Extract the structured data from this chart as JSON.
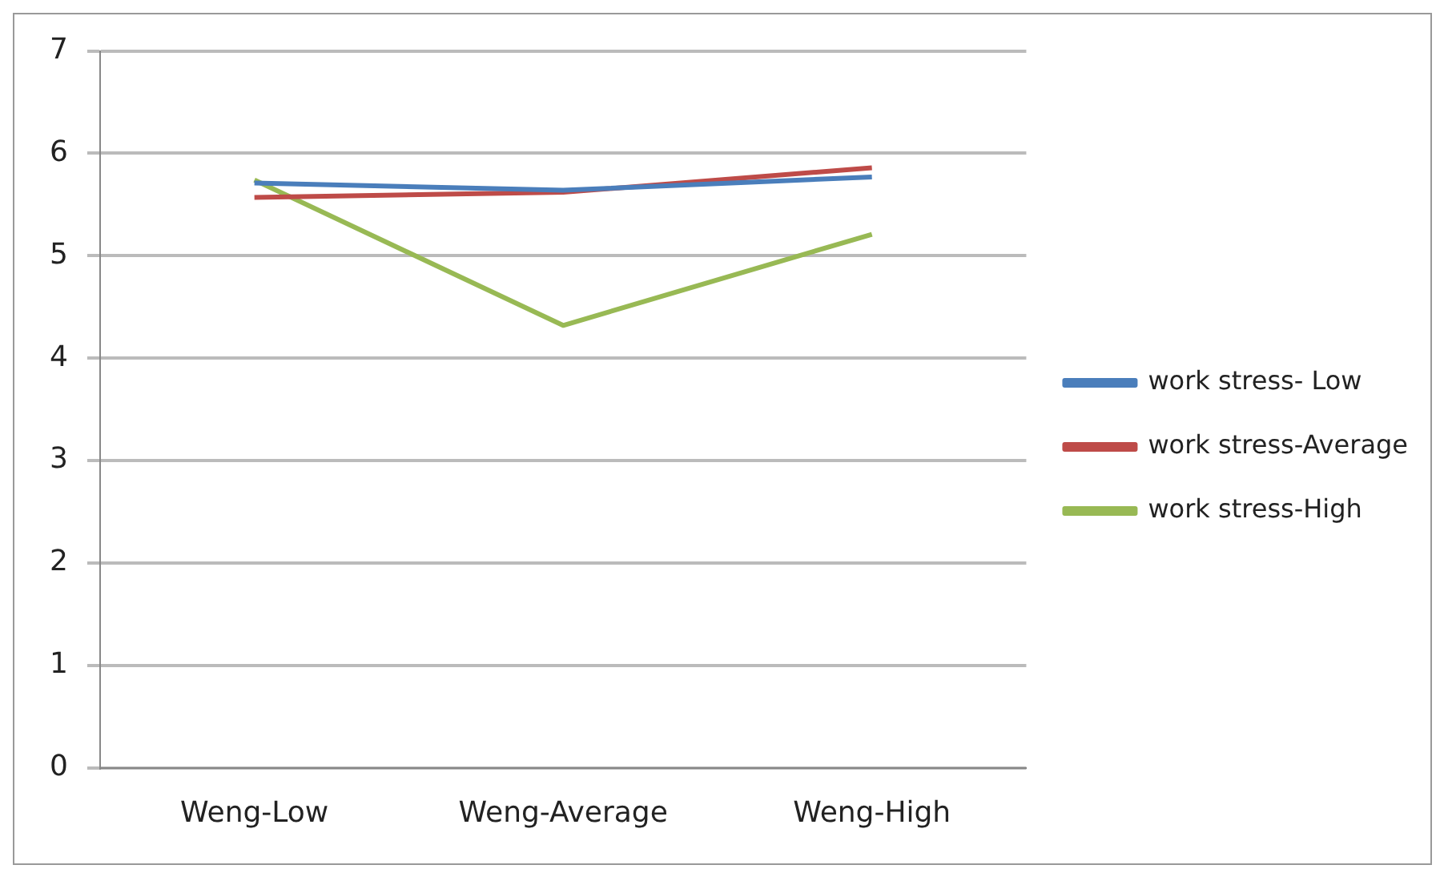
{
  "chart_data": {
    "type": "line",
    "categories": [
      "Weng-Low",
      "Weng-Average",
      "Weng-High"
    ],
    "series": [
      {
        "name": "work stress- Low",
        "color": "#4a7ebb",
        "values": [
          5.71,
          5.64,
          5.77
        ]
      },
      {
        "name": "work stress-Average",
        "color": "#be4b48",
        "values": [
          5.57,
          5.62,
          5.86
        ]
      },
      {
        "name": "work stress-High",
        "color": "#98b954",
        "values": [
          5.74,
          4.32,
          5.21
        ]
      }
    ],
    "ylim": [
      0,
      7
    ],
    "yticks": [
      0,
      1,
      2,
      3,
      4,
      5,
      6,
      7
    ],
    "grid": "y",
    "legend": "right",
    "marker": "none",
    "line_style": "solid"
  }
}
